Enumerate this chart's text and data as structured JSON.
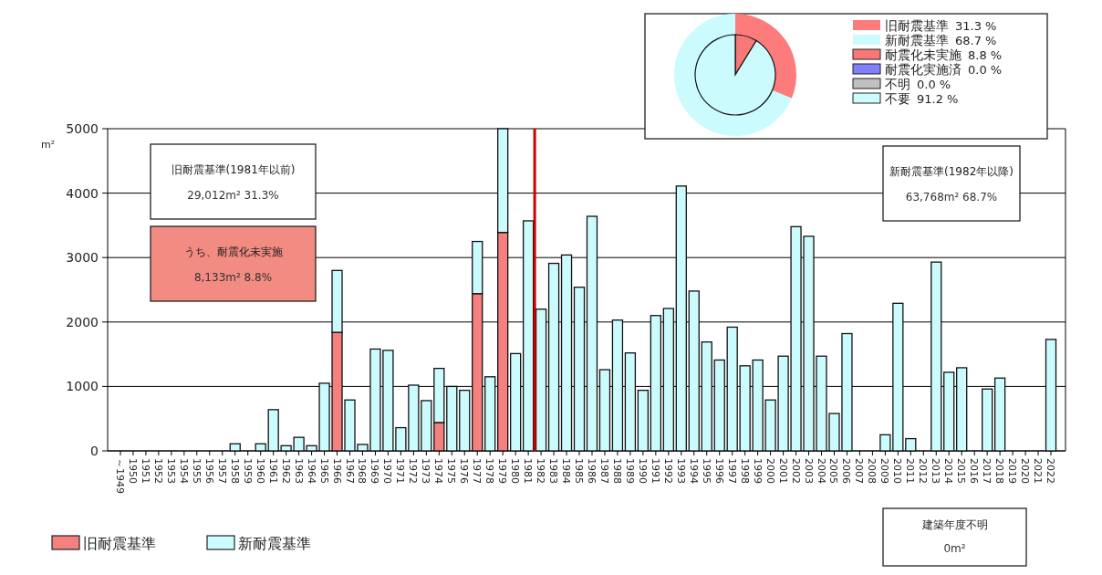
{
  "chart_data": [
    {
      "type": "bar",
      "ylabel": "m²",
      "stacked": true,
      "grid": "y",
      "legend": "bottom left",
      "categories": [
        "～1949",
        "1950",
        "1951",
        "1952",
        "1953",
        "1954",
        "1955",
        "1956",
        "1957",
        "1958",
        "1959",
        "1960",
        "1961",
        "1962",
        "1963",
        "1964",
        "1965",
        "1966",
        "1967",
        "1968",
        "1969",
        "1970",
        "1971",
        "1972",
        "1973",
        "1974",
        "1975",
        "1976",
        "1977",
        "1978",
        "1979",
        "1980",
        "1981",
        "1982",
        "1983",
        "1984",
        "1985",
        "1986",
        "1987",
        "1988",
        "1989",
        "1990",
        "1991",
        "1992",
        "1993",
        "1994",
        "1995",
        "1996",
        "1997",
        "1998",
        "1999",
        "2000",
        "2001",
        "2002",
        "2003",
        "2004",
        "2005",
        "2006",
        "2007",
        "2008",
        "2009",
        "2010",
        "2011",
        "2012",
        "2013",
        "2014",
        "2015",
        "2016",
        "2017",
        "2018",
        "2019",
        "2020",
        "2021",
        "2022"
      ],
      "series": [
        {
          "name": "旧耐震基準",
          "color": "#f48080",
          "values": [
            0,
            0,
            0,
            0,
            0,
            0,
            0,
            0,
            0,
            0,
            0,
            0,
            0,
            0,
            0,
            0,
            0,
            1840,
            0,
            0,
            0,
            0,
            0,
            0,
            0,
            440,
            0,
            0,
            2440,
            0,
            3390,
            0,
            0,
            0,
            0,
            0,
            0,
            0,
            0,
            0,
            0,
            0,
            0,
            0,
            0,
            0,
            0,
            0,
            0,
            0,
            0,
            0,
            0,
            0,
            0,
            0,
            0,
            0,
            0,
            0,
            0,
            0,
            0,
            0,
            0,
            0,
            0,
            0,
            0,
            0,
            0,
            0,
            0,
            0
          ]
        },
        {
          "name": "新耐震基準",
          "color": "#ccfbfe",
          "values": [
            0,
            0,
            0,
            0,
            0,
            0,
            0,
            0,
            0,
            110,
            0,
            110,
            640,
            80,
            210,
            80,
            1050,
            960,
            790,
            100,
            1580,
            1560,
            360,
            1020,
            780,
            840,
            1000,
            940,
            810,
            1150,
            1610,
            1510,
            3570,
            2200,
            2910,
            3040,
            2540,
            3640,
            1260,
            2030,
            1520,
            940,
            2100,
            2210,
            4110,
            2480,
            1690,
            1410,
            1920,
            1320,
            1410,
            790,
            1470,
            3480,
            3330,
            1470,
            580,
            1820,
            0,
            0,
            250,
            2290,
            190,
            0,
            2930,
            1220,
            1290,
            0,
            960,
            1130,
            0,
            0,
            0,
            1730
          ]
        }
      ],
      "ylim": [
        0,
        5000
      ],
      "yticks": [
        0,
        1000,
        2000,
        3000,
        4000,
        5000
      ],
      "ref_lines": [
        {
          "axis": "x",
          "value": "1981",
          "color": "#cc0000"
        }
      ],
      "annotations": [
        "旧耐震基準(1981年以前)",
        "29,012m² 31.3%",
        "うち、耐震化未実施",
        "8,133m²  8.8%",
        "新耐震基準(1982年以降)",
        "63,768m² 68.7%",
        "建築年度不明",
        "0m²"
      ]
    },
    {
      "type": "donut",
      "legend": "right",
      "categories": [
        "旧耐震基準",
        "新耐震基準"
      ],
      "values": [
        31.3,
        68.7
      ],
      "colors": [
        "#fd7b7b",
        "#ccfbfe"
      ],
      "value_labels": [
        "31.3 %",
        "68.7 %"
      ]
    },
    {
      "type": "pie",
      "legend": "right",
      "categories": [
        "耐震化未実施",
        "耐震化実施済",
        "不明",
        "不要"
      ],
      "values": [
        8.8,
        0.0,
        0.0,
        91.2
      ],
      "colors": [
        "#f87878",
        "#8080ff",
        "#c0c0c0",
        "#ccfbfe"
      ],
      "value_labels": [
        "8.8 %",
        "0.0 %",
        "0.0 %",
        "91.2 %"
      ]
    }
  ]
}
